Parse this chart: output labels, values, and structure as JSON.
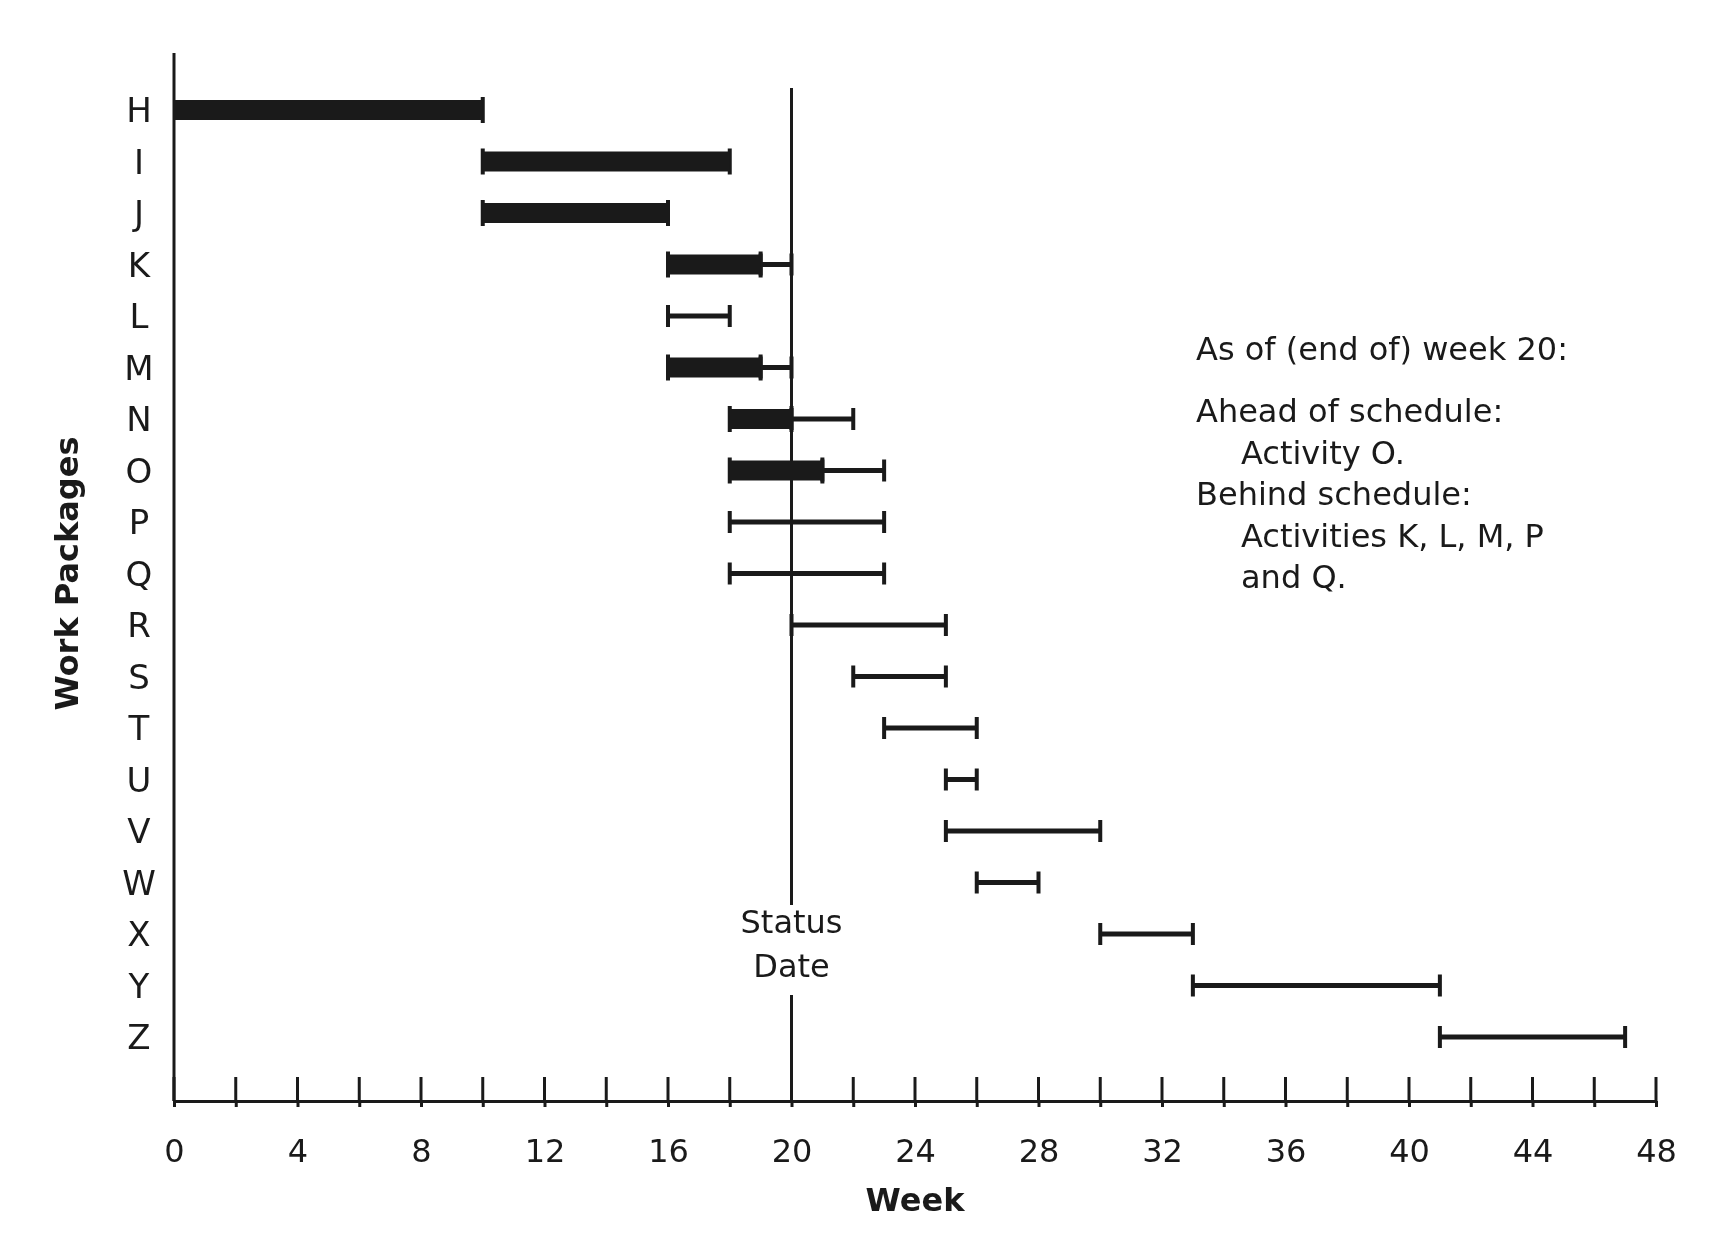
{
  "chart_data": {
    "type": "bar",
    "orientation": "horizontal",
    "xlabel": "Week",
    "ylabel": "Work Packages",
    "categories": [
      "H",
      "I",
      "J",
      "K",
      "L",
      "M",
      "N",
      "O",
      "P",
      "Q",
      "R",
      "S",
      "T",
      "U",
      "V",
      "W",
      "X",
      "Y",
      "Z"
    ],
    "series": [
      {
        "color": "#1a1a1a",
        "base": [
          0,
          10,
          10,
          16,
          null,
          16,
          18,
          18,
          null,
          null,
          null,
          null,
          null,
          null,
          null,
          null,
          null,
          null,
          null
        ],
        "values": [
          10,
          8,
          6,
          3,
          null,
          3,
          2,
          3,
          null,
          null,
          null,
          null,
          null,
          null,
          null,
          null,
          null,
          null,
          null
        ]
      },
      {
        "color": "#1a1a1a",
        "base": [
          null,
          null,
          null,
          19,
          16,
          19,
          20,
          21,
          18,
          18,
          20,
          22,
          23,
          25,
          25,
          26,
          30,
          33,
          41
        ],
        "values": [
          null,
          null,
          null,
          1,
          2,
          1,
          2,
          2,
          5,
          5,
          5,
          3,
          3,
          1,
          5,
          2,
          3,
          8,
          6
        ]
      }
    ],
    "xlim": [
      0,
      48
    ],
    "xticks": [
      0,
      {
        "value": 2,
        "label": null
      },
      4,
      {
        "value": 6,
        "label": null
      },
      8,
      {
        "value": 10,
        "label": null
      },
      12,
      {
        "value": 14,
        "label": null
      },
      16,
      {
        "value": 18,
        "label": null
      },
      20,
      {
        "value": 22,
        "label": null
      },
      24,
      {
        "value": 26,
        "label": null
      },
      28,
      {
        "value": 30,
        "label": null
      },
      32,
      {
        "value": 34,
        "label": null
      },
      36,
      {
        "value": 38,
        "label": null
      },
      40,
      {
        "value": 42,
        "label": null
      },
      44,
      {
        "value": 46,
        "label": null
      },
      48
    ],
    "ref_lines": [
      {
        "axis": "x",
        "value": 20,
        "label": "Status Date",
        "color": "#1a1a1a"
      }
    ],
    "annotations": [
      "As of (end of) week 20:",
      "Ahead of schedule:",
      "Activity O.",
      "Behind schedule:",
      "Activities K, L, M, P",
      "and Q."
    ],
    "grid": false,
    "legend": false
  }
}
